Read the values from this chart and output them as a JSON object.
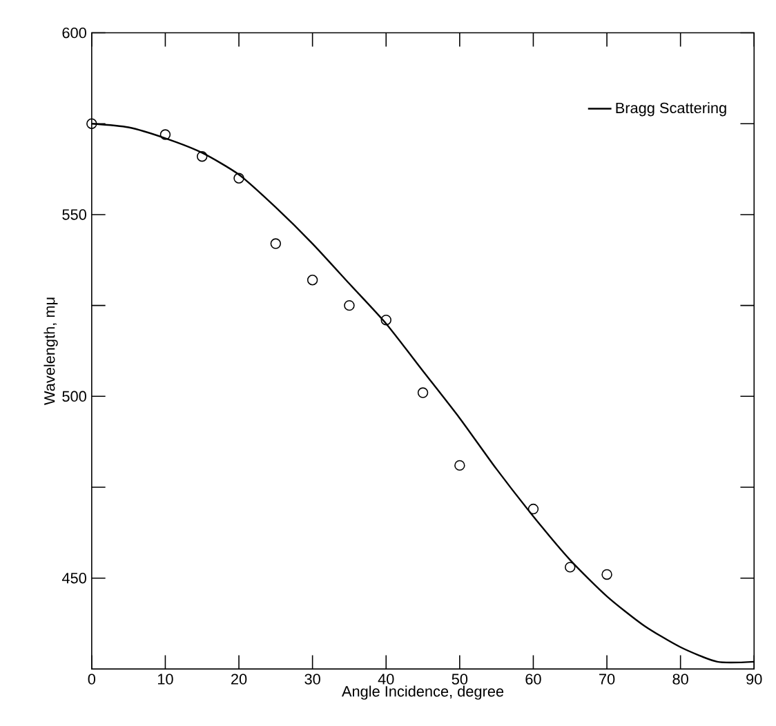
{
  "chart_data": {
    "type": "line",
    "xlabel": "Angle Incidence, degree",
    "ylabel": "Wavelength, mμ",
    "xlim": [
      0,
      90
    ],
    "ylim": [
      425,
      600
    ],
    "xticks": [
      0,
      10,
      20,
      30,
      40,
      50,
      60,
      70,
      80,
      90
    ],
    "yticks": [
      450,
      {
        "value": 475,
        "label": null
      },
      500,
      {
        "value": 525,
        "label": null
      },
      550,
      {
        "value": 575,
        "label": null
      },
      600
    ],
    "legend": "top right",
    "grid": false,
    "series": [
      {
        "name": "Bragg Scattering",
        "color": "#000000",
        "marker": "none",
        "line_style": "solid",
        "x": [
          0,
          5,
          10,
          15,
          20,
          25,
          30,
          35,
          40,
          45,
          50,
          55,
          60,
          65,
          70,
          75,
          80,
          85,
          90
        ],
        "values": [
          575,
          574,
          571,
          567,
          561,
          552,
          542,
          531,
          520,
          507,
          494,
          480,
          467,
          455,
          445,
          437,
          431,
          427,
          427
        ]
      },
      {
        "type": "scatter",
        "color": "#000000",
        "marker": "circle",
        "x": [
          0,
          10,
          15,
          20,
          25,
          30,
          35,
          40,
          45,
          50,
          60,
          65,
          70
        ],
        "values": [
          575,
          572,
          566,
          560,
          542,
          532,
          525,
          521,
          501,
          481,
          469,
          453,
          451
        ]
      }
    ]
  }
}
